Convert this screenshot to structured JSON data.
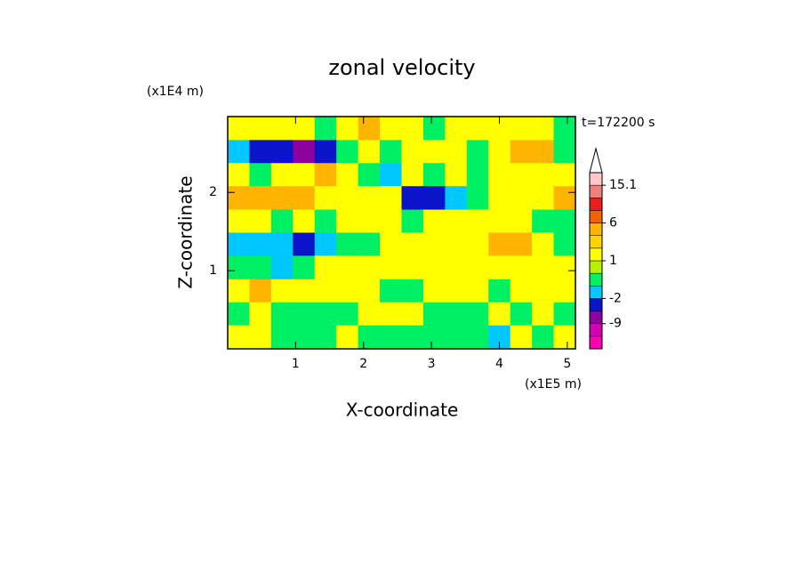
{
  "chart_data": {
    "type": "contour",
    "title": "zonal velocity",
    "x_label": "X-coordinate",
    "y_label": "Z-coordinate",
    "x_unit": "(x1E5 m)",
    "y_unit": "(x1E4 m)",
    "annotation": "t=172200 s",
    "xlim": [
      0,
      5.12
    ],
    "ylim": [
      0,
      2.97
    ],
    "xticks": [
      1,
      2,
      3,
      4,
      5
    ],
    "yticks": [
      1,
      2
    ],
    "x": [
      0.16,
      0.48,
      0.8,
      1.12,
      1.44,
      1.76,
      2.08,
      2.4,
      2.72,
      3.04,
      3.36,
      3.68,
      4.0,
      4.32,
      4.64,
      4.96
    ],
    "y": [
      2.82,
      2.52,
      2.23,
      1.93,
      1.63,
      1.34,
      1.04,
      0.74,
      0.45,
      0.15
    ],
    "z": [
      [
        1.5,
        1.5,
        1.5,
        1.5,
        -0.5,
        1.5,
        4,
        1.5,
        1.5,
        -0.5,
        1.5,
        1.5,
        1.5,
        1.5,
        1.5,
        -0.5
      ],
      [
        -1.5,
        -4,
        -4,
        -7,
        -4,
        -0.5,
        1.5,
        -0.5,
        1.5,
        1.5,
        1.5,
        -0.5,
        1.5,
        4,
        4,
        -0.5
      ],
      [
        1.5,
        -0.5,
        1.5,
        1.5,
        4,
        1.5,
        -0.5,
        -1.5,
        1.5,
        -0.5,
        1.5,
        -0.5,
        1.5,
        1.5,
        1.5,
        1.5
      ],
      [
        4,
        4,
        4,
        4,
        1.5,
        1.5,
        1.5,
        1.5,
        -4,
        -4,
        -1.5,
        -0.5,
        1.5,
        1.5,
        1.5,
        4
      ],
      [
        1.5,
        1.5,
        -0.5,
        1.5,
        -0.5,
        1.5,
        1.5,
        1.5,
        -0.5,
        1.5,
        1.5,
        1.5,
        1.5,
        1.5,
        -0.5,
        -0.5
      ],
      [
        -1.5,
        -1.5,
        -1.5,
        -4,
        -1.5,
        -0.5,
        -0.5,
        1.5,
        1.5,
        1.5,
        1.5,
        1.5,
        4,
        4,
        1.5,
        -0.5
      ],
      [
        -0.5,
        -0.5,
        -1.5,
        -0.5,
        1.5,
        1.5,
        1.5,
        1.5,
        1.5,
        1.5,
        1.5,
        1.5,
        1.5,
        1.5,
        1.5,
        1.5
      ],
      [
        1.5,
        4,
        1.5,
        1.5,
        1.5,
        1.5,
        1.5,
        -0.5,
        -0.5,
        1.5,
        1.5,
        1.5,
        -0.5,
        1.5,
        1.5,
        1.5
      ],
      [
        -0.5,
        1.5,
        -0.5,
        -0.5,
        -0.5,
        -0.5,
        1.5,
        1.5,
        1.5,
        -0.5,
        -0.5,
        -0.5,
        1.5,
        -0.5,
        1.5,
        -0.5
      ],
      [
        1.5,
        1.5,
        -0.5,
        -0.5,
        -0.5,
        1.5,
        -0.5,
        -0.5,
        -0.5,
        -0.5,
        -0.5,
        -0.5,
        -1.5,
        1.5,
        -0.5,
        1.5
      ]
    ],
    "colorbar": {
      "levels": [
        -16,
        -12,
        -9,
        -6,
        -2,
        -1,
        0,
        1,
        2,
        3,
        6,
        9,
        12,
        15.1
      ],
      "colors": [
        "#ff00b4",
        "#d200b4",
        "#8c00a0",
        "#0a14c8",
        "#00c8ff",
        "#00f064",
        "#b4f000",
        "#ffff00",
        "#ffd200",
        "#ffb400",
        "#f06400",
        "#e61e1e",
        "#f08080"
      ],
      "over_color": "#ffc8c8",
      "ticks": [
        -9,
        -2,
        1,
        6,
        15.1
      ]
    }
  }
}
